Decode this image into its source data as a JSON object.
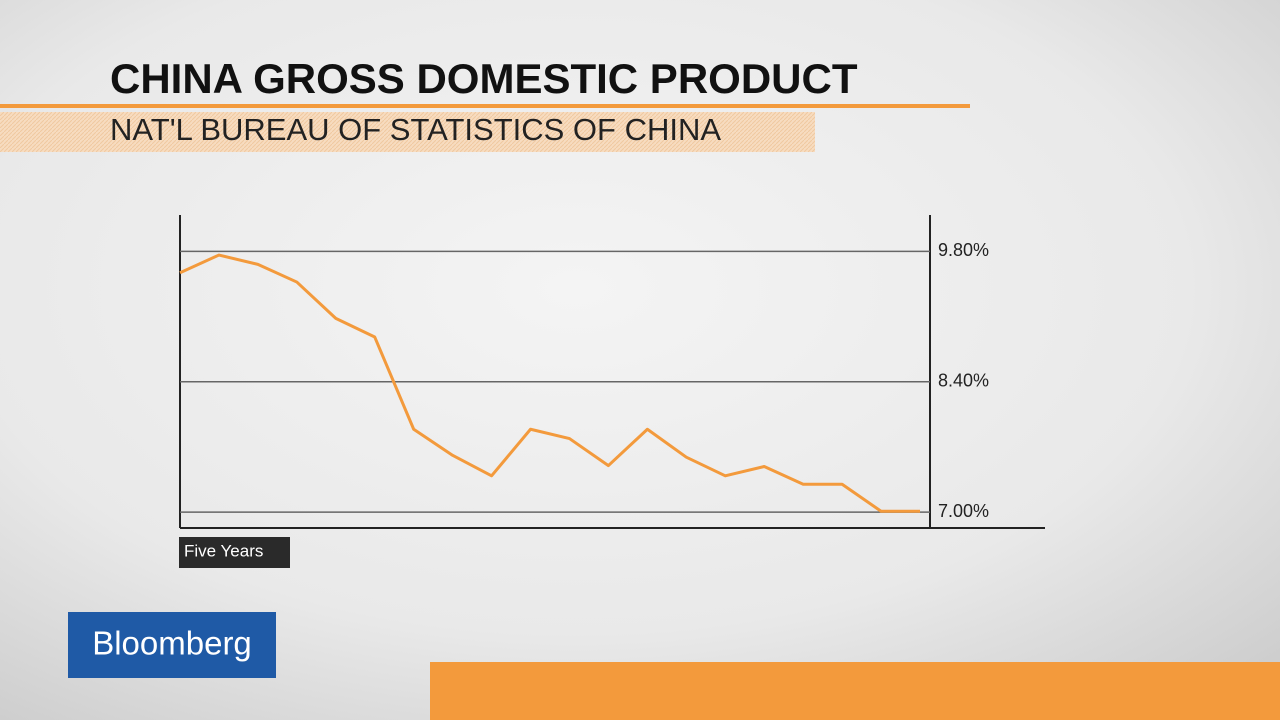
{
  "brand": "Bloomberg",
  "chart_data": {
    "type": "line",
    "title": "CHINA GROSS DOMESTIC PRODUCT",
    "subtitle": "NAT'L BUREAU OF STATISTICS OF CHINA",
    "x_label": "Five Years",
    "categories": [
      null,
      null,
      null,
      null,
      null,
      null,
      null,
      null,
      null,
      null,
      null,
      null,
      null,
      null,
      null,
      null,
      null,
      null,
      null,
      null
    ],
    "series": [
      {
        "color": "#f39a3c",
        "values": [
          9.57,
          9.76,
          9.66,
          9.47,
          9.08,
          8.88,
          7.89,
          7.61,
          7.39,
          7.89,
          7.79,
          7.5,
          7.89,
          7.59,
          7.39,
          7.49,
          7.3,
          7.3,
          7.01,
          7.01
        ]
      }
    ],
    "ylim": [
      6.83,
      10.19
    ],
    "yticks": [
      {
        "value": 7.0,
        "label": "7.00%"
      },
      {
        "value": 8.4,
        "label": "8.40%"
      },
      {
        "value": 9.8,
        "label": "9.80%"
      }
    ],
    "grid": true
  }
}
